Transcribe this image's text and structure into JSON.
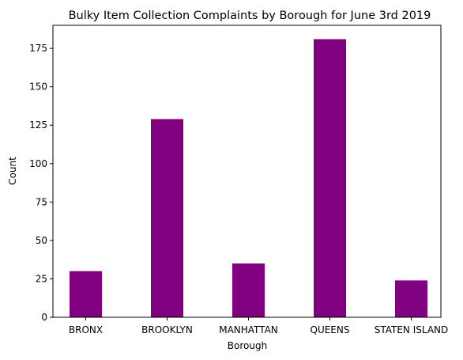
{
  "chart_data": {
    "type": "bar",
    "title": "Bulky Item Collection Complaints by Borough for June 3rd 2019",
    "xlabel": "Borough",
    "ylabel": "Count",
    "categories": [
      "BRONX",
      "BROOKLYN",
      "MANHATTAN",
      "QUEENS",
      "STATEN ISLAND"
    ],
    "values": [
      30,
      129,
      35,
      181,
      24
    ],
    "ylim": [
      0,
      190
    ],
    "yticks": [
      0,
      25,
      50,
      75,
      100,
      125,
      150,
      175
    ],
    "bar_color": "#800080",
    "grid": false,
    "legend": "none"
  }
}
